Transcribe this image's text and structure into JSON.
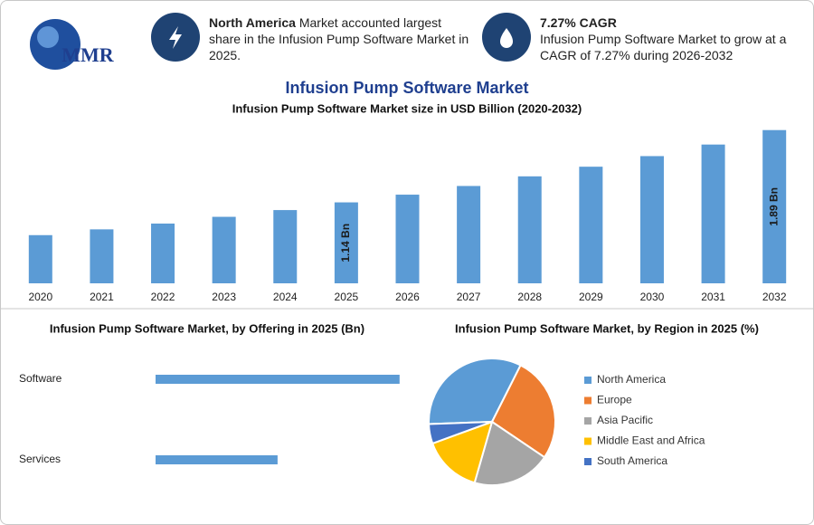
{
  "header": {
    "logo": "MMR",
    "stats": [
      {
        "title": "North America",
        "text": "Market accounted largest share in the Infusion Pump Software Market in 2025."
      },
      {
        "title": "7.27% CAGR",
        "text": "Infusion Pump Software Market to grow at a CAGR of 7.27% during 2026-2032"
      }
    ],
    "title": "Infusion Pump Software Market"
  },
  "chart_data": [
    {
      "type": "bar",
      "title": "Infusion Pump Software Market size in USD Billion (2020-2032)",
      "categories": [
        "2020",
        "2021",
        "2022",
        "2023",
        "2024",
        "2025",
        "2026",
        "2027",
        "2028",
        "2029",
        "2030",
        "2031",
        "2032"
      ],
      "values": [
        0.8,
        0.86,
        0.92,
        0.99,
        1.06,
        1.14,
        1.22,
        1.31,
        1.41,
        1.51,
        1.62,
        1.74,
        1.89
      ],
      "value_labels": [
        null,
        null,
        null,
        null,
        null,
        "1.14 Bn",
        null,
        null,
        null,
        null,
        null,
        null,
        "1.89 Bn"
      ],
      "color": "#5b9bd5",
      "ylim": [
        0.3,
        2.0
      ]
    },
    {
      "type": "hbar",
      "title": "Infusion Pump Software Market, by Offering in 2025 (Bn)",
      "categories": [
        "Software",
        "Services"
      ],
      "values": [
        0.76,
        0.38
      ],
      "color": "#5b9bd5",
      "xlim": [
        0,
        0.8
      ]
    },
    {
      "type": "pie",
      "title": "Infusion Pump Software Market, by Region in 2025 (%)",
      "categories": [
        "North America",
        "Europe",
        "Asia Pacific",
        "Middle East and Africa",
        "South America"
      ],
      "values": [
        33,
        27,
        20,
        15,
        5
      ],
      "colors": [
        "#5b9bd5",
        "#ed7d31",
        "#a5a5a5",
        "#ffc000",
        "#4472c4"
      ],
      "legend": "right"
    }
  ]
}
